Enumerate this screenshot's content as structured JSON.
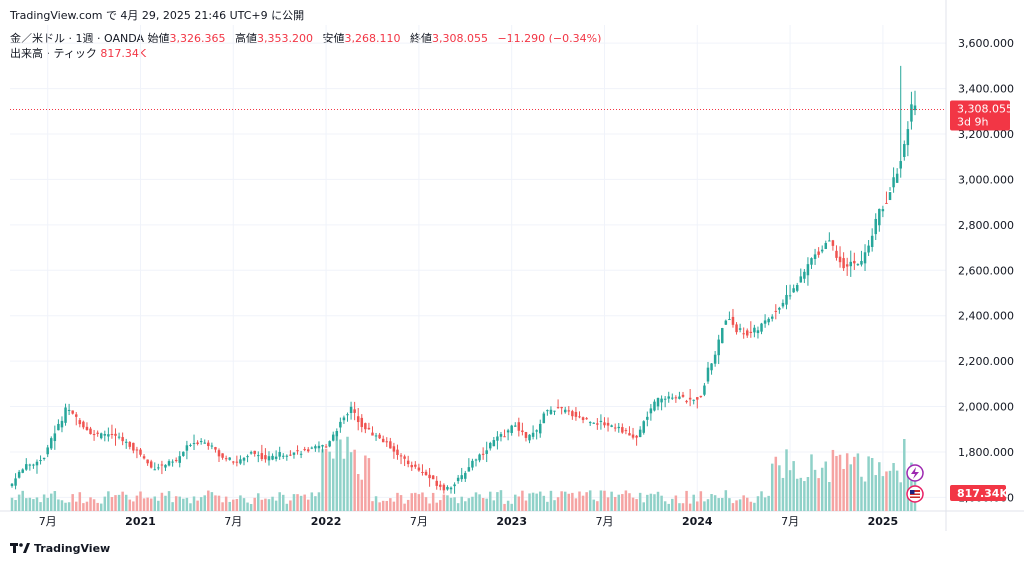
{
  "header": {
    "caption": "TradingView.com で 4月 29, 2025 21:46 UTC+9 に公開"
  },
  "legend": {
    "symbol": "金／米ドル · 1週 · OANDA",
    "open_label": "始値",
    "open_value": "3,326.365",
    "high_label": "高値",
    "high_value": "3,353.200",
    "low_label": "安値",
    "low_value": "3,268.110",
    "close_label": "終値",
    "close_value": "3,308.055",
    "change": "−11.290 (−0.34%)",
    "volume_label": "出来高 · ティック",
    "volume_value": "817.34K"
  },
  "price_tag": {
    "price": "3,308.055",
    "countdown": "3d 9h"
  },
  "volume_tag": "817.34K",
  "footer": {
    "brand": "TradingView"
  },
  "colors": {
    "up": "#26a69a",
    "down": "#ef5350",
    "up_vol": "#8fd1c8",
    "down_vol": "#f5a3a2",
    "price_line": "#f23645",
    "grid": "#f0f3fa"
  },
  "icons": [
    "lightning-icon",
    "us-flag-icon"
  ],
  "chart_data": {
    "type": "candlestick",
    "title": "",
    "interval": "weekly",
    "y_axis": {
      "ticks": [
        "1,600.000",
        "1,800.000",
        "2,000.000",
        "2,200.000",
        "2,400.000",
        "2,600.000",
        "2,800.000",
        "3,000.000",
        "3,200.000",
        "3,400.000",
        "3,600.000"
      ],
      "tick_values": [
        1600,
        1800,
        2000,
        2200,
        2400,
        2600,
        2800,
        3000,
        3200,
        3400,
        3600
      ],
      "range": [
        1540,
        3680
      ],
      "scale": "linear"
    },
    "x_axis": {
      "labels": [
        "7月",
        "2021",
        "7月",
        "2022",
        "7月",
        "2023",
        "7月",
        "2024",
        "7月",
        "2025"
      ],
      "label_week_index": [
        10,
        36,
        62,
        88,
        114,
        140,
        166,
        192,
        218,
        244
      ]
    },
    "last_price": 3308.055,
    "close_path": [
      {
        "week": 0,
        "close": 1660
      },
      {
        "week": 3,
        "close": 1730
      },
      {
        "week": 6,
        "close": 1750
      },
      {
        "week": 9,
        "close": 1780
      },
      {
        "week": 12,
        "close": 1890
      },
      {
        "week": 14,
        "close": 1940
      },
      {
        "week": 15,
        "close": 1985
      },
      {
        "week": 18,
        "close": 1950
      },
      {
        "week": 21,
        "close": 1900
      },
      {
        "week": 24,
        "close": 1870
      },
      {
        "week": 27,
        "close": 1880
      },
      {
        "week": 30,
        "close": 1860
      },
      {
        "week": 33,
        "close": 1830
      },
      {
        "week": 36,
        "close": 1790
      },
      {
        "week": 39,
        "close": 1730
      },
      {
        "week": 42,
        "close": 1740
      },
      {
        "week": 46,
        "close": 1760
      },
      {
        "week": 50,
        "close": 1840
      },
      {
        "week": 54,
        "close": 1850
      },
      {
        "week": 58,
        "close": 1790
      },
      {
        "week": 63,
        "close": 1750
      },
      {
        "week": 67,
        "close": 1800
      },
      {
        "week": 71,
        "close": 1770
      },
      {
        "week": 75,
        "close": 1790
      },
      {
        "week": 80,
        "close": 1800
      },
      {
        "week": 84,
        "close": 1810
      },
      {
        "week": 88,
        "close": 1830
      },
      {
        "week": 91,
        "close": 1900
      },
      {
        "week": 93,
        "close": 1960
      },
      {
        "week": 95,
        "close": 1990
      },
      {
        "week": 98,
        "close": 1920
      },
      {
        "week": 101,
        "close": 1880
      },
      {
        "week": 104,
        "close": 1850
      },
      {
        "week": 107,
        "close": 1810
      },
      {
        "week": 110,
        "close": 1760
      },
      {
        "week": 113,
        "close": 1730
      },
      {
        "week": 116,
        "close": 1700
      },
      {
        "week": 119,
        "close": 1660
      },
      {
        "week": 121,
        "close": 1640
      },
      {
        "week": 123,
        "close": 1650
      },
      {
        "week": 126,
        "close": 1690
      },
      {
        "week": 129,
        "close": 1760
      },
      {
        "week": 132,
        "close": 1800
      },
      {
        "week": 135,
        "close": 1850
      },
      {
        "week": 138,
        "close": 1880
      },
      {
        "week": 141,
        "close": 1920
      },
      {
        "week": 144,
        "close": 1860
      },
      {
        "week": 147,
        "close": 1890
      },
      {
        "week": 149,
        "close": 1970
      },
      {
        "week": 152,
        "close": 1990
      },
      {
        "week": 155,
        "close": 1980
      },
      {
        "week": 158,
        "close": 1960
      },
      {
        "week": 161,
        "close": 1940
      },
      {
        "week": 164,
        "close": 1930
      },
      {
        "week": 167,
        "close": 1920
      },
      {
        "week": 170,
        "close": 1910
      },
      {
        "week": 173,
        "close": 1870
      },
      {
        "week": 175,
        "close": 1860
      },
      {
        "week": 177,
        "close": 1930
      },
      {
        "week": 179,
        "close": 1990
      },
      {
        "week": 181,
        "close": 2030
      },
      {
        "week": 184,
        "close": 2050
      },
      {
        "week": 187,
        "close": 2040
      },
      {
        "week": 190,
        "close": 2020
      },
      {
        "week": 193,
        "close": 2050
      },
      {
        "week": 195,
        "close": 2160
      },
      {
        "week": 197,
        "close": 2230
      },
      {
        "week": 199,
        "close": 2350
      },
      {
        "week": 201,
        "close": 2390
      },
      {
        "week": 203,
        "close": 2340
      },
      {
        "week": 206,
        "close": 2320
      },
      {
        "week": 209,
        "close": 2340
      },
      {
        "week": 212,
        "close": 2390
      },
      {
        "week": 215,
        "close": 2440
      },
      {
        "week": 218,
        "close": 2500
      },
      {
        "week": 221,
        "close": 2560
      },
      {
        "week": 224,
        "close": 2650
      },
      {
        "week": 227,
        "close": 2700
      },
      {
        "week": 229,
        "close": 2740
      },
      {
        "week": 231,
        "close": 2660
      },
      {
        "week": 233,
        "close": 2620
      },
      {
        "week": 235,
        "close": 2640
      },
      {
        "week": 237,
        "close": 2620
      },
      {
        "week": 239,
        "close": 2670
      },
      {
        "week": 241,
        "close": 2760
      },
      {
        "week": 243,
        "close": 2860
      },
      {
        "week": 245,
        "close": 2910
      },
      {
        "week": 247,
        "close": 3000
      },
      {
        "week": 249,
        "close": 3080
      },
      {
        "week": 251,
        "close": 3240
      },
      {
        "week": 252,
        "close": 3320
      },
      {
        "week": 253,
        "close": 3308
      }
    ],
    "volume": {
      "last": "817.34K",
      "high_volume_weeks": [
        [
          87,
          100
        ],
        [
          213,
          253
        ]
      ]
    }
  }
}
